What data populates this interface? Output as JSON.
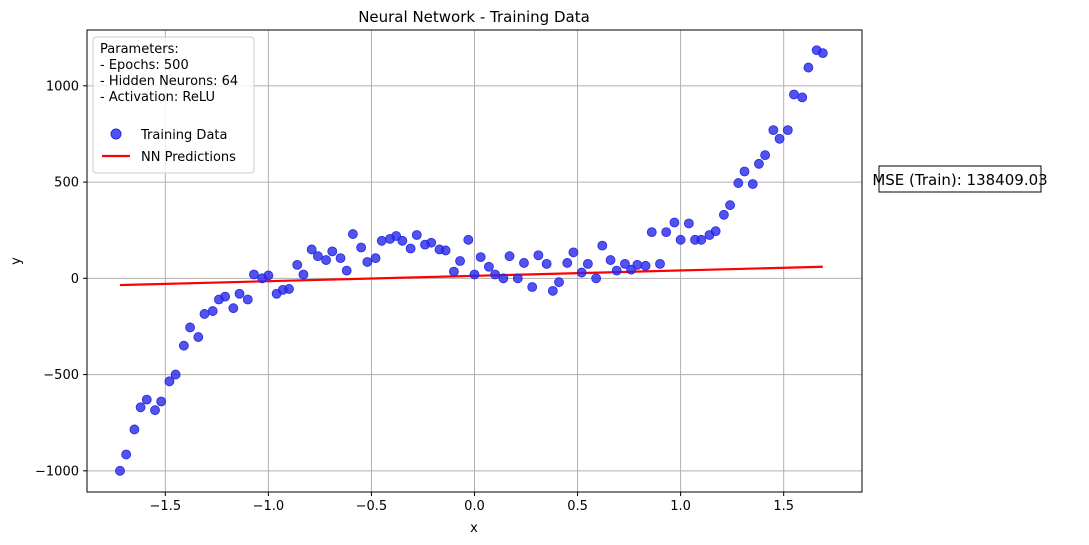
{
  "chart_data": {
    "type": "scatter",
    "title": "Neural Network - Training Data",
    "xlabel": "x",
    "ylabel": "y",
    "xlim": [
      -1.88,
      1.88
    ],
    "ylim": [
      -1110,
      1290
    ],
    "x_ticks": [
      -1.5,
      -1.0,
      -0.5,
      0.0,
      0.5,
      1.0,
      1.5
    ],
    "x_tick_labels": [
      "−1.5",
      "−1.0",
      "−0.5",
      "0.0",
      "0.5",
      "1.0",
      "1.5"
    ],
    "y_ticks": [
      -1000,
      -500,
      0,
      500,
      1000
    ],
    "y_tick_labels": [
      "−1000",
      "−500",
      "0",
      "500",
      "1000"
    ],
    "grid": true,
    "legend_placement": "top-left",
    "legend_header": [
      "Parameters:",
      "- Epochs: 500",
      "- Hidden Neurons: 64",
      "- Activation: ReLU"
    ],
    "series": [
      {
        "name": "Training Data",
        "kind": "scatter",
        "color": "#2727e8",
        "points": [
          [
            -1.72,
            -1000
          ],
          [
            -1.69,
            -915
          ],
          [
            -1.65,
            -785
          ],
          [
            -1.62,
            -670
          ],
          [
            -1.59,
            -630
          ],
          [
            -1.55,
            -685
          ],
          [
            -1.52,
            -640
          ],
          [
            -1.48,
            -535
          ],
          [
            -1.45,
            -500
          ],
          [
            -1.41,
            -350
          ],
          [
            -1.38,
            -255
          ],
          [
            -1.34,
            -305
          ],
          [
            -1.31,
            -185
          ],
          [
            -1.27,
            -170
          ],
          [
            -1.24,
            -110
          ],
          [
            -1.21,
            -95
          ],
          [
            -1.17,
            -155
          ],
          [
            -1.14,
            -80
          ],
          [
            -1.1,
            -110
          ],
          [
            -1.07,
            20
          ],
          [
            -1.03,
            0
          ],
          [
            -1.0,
            15
          ],
          [
            -0.96,
            -80
          ],
          [
            -0.93,
            -60
          ],
          [
            -0.9,
            -55
          ],
          [
            -0.86,
            70
          ],
          [
            -0.83,
            20
          ],
          [
            -0.79,
            150
          ],
          [
            -0.76,
            115
          ],
          [
            -0.72,
            95
          ],
          [
            -0.69,
            140
          ],
          [
            -0.65,
            105
          ],
          [
            -0.62,
            40
          ],
          [
            -0.59,
            230
          ],
          [
            -0.55,
            160
          ],
          [
            -0.52,
            85
          ],
          [
            -0.48,
            105
          ],
          [
            -0.45,
            195
          ],
          [
            -0.41,
            205
          ],
          [
            -0.38,
            220
          ],
          [
            -0.35,
            195
          ],
          [
            -0.31,
            155
          ],
          [
            -0.28,
            225
          ],
          [
            -0.24,
            175
          ],
          [
            -0.21,
            185
          ],
          [
            -0.17,
            150
          ],
          [
            -0.14,
            145
          ],
          [
            -0.1,
            35
          ],
          [
            -0.07,
            90
          ],
          [
            -0.03,
            200
          ],
          [
            0.0,
            20
          ],
          [
            0.03,
            110
          ],
          [
            0.07,
            60
          ],
          [
            0.1,
            20
          ],
          [
            0.14,
            0
          ],
          [
            0.17,
            115
          ],
          [
            0.21,
            0
          ],
          [
            0.24,
            80
          ],
          [
            0.28,
            -45
          ],
          [
            0.31,
            120
          ],
          [
            0.35,
            75
          ],
          [
            0.38,
            -65
          ],
          [
            0.41,
            -20
          ],
          [
            0.45,
            80
          ],
          [
            0.48,
            135
          ],
          [
            0.52,
            30
          ],
          [
            0.55,
            75
          ],
          [
            0.59,
            0
          ],
          [
            0.62,
            170
          ],
          [
            0.66,
            95
          ],
          [
            0.69,
            40
          ],
          [
            0.73,
            75
          ],
          [
            0.76,
            45
          ],
          [
            0.79,
            70
          ],
          [
            0.83,
            65
          ],
          [
            0.86,
            240
          ],
          [
            0.9,
            75
          ],
          [
            0.93,
            240
          ],
          [
            0.97,
            290
          ],
          [
            1.0,
            200
          ],
          [
            1.04,
            285
          ],
          [
            1.07,
            200
          ],
          [
            1.1,
            200
          ],
          [
            1.14,
            225
          ],
          [
            1.17,
            245
          ],
          [
            1.21,
            330
          ],
          [
            1.24,
            380
          ],
          [
            1.28,
            495
          ],
          [
            1.31,
            555
          ],
          [
            1.35,
            490
          ],
          [
            1.38,
            595
          ],
          [
            1.41,
            640
          ],
          [
            1.45,
            770
          ],
          [
            1.48,
            725
          ],
          [
            1.52,
            770
          ],
          [
            1.55,
            955
          ],
          [
            1.59,
            940
          ],
          [
            1.62,
            1095
          ],
          [
            1.66,
            1185
          ],
          [
            1.69,
            1170
          ]
        ]
      },
      {
        "name": "NN Predictions",
        "kind": "line",
        "color": "#ff0000",
        "points": [
          [
            -1.72,
            -35
          ],
          [
            1.69,
            60
          ]
        ]
      }
    ],
    "annotation": "MSE (Train): 138409.03"
  }
}
